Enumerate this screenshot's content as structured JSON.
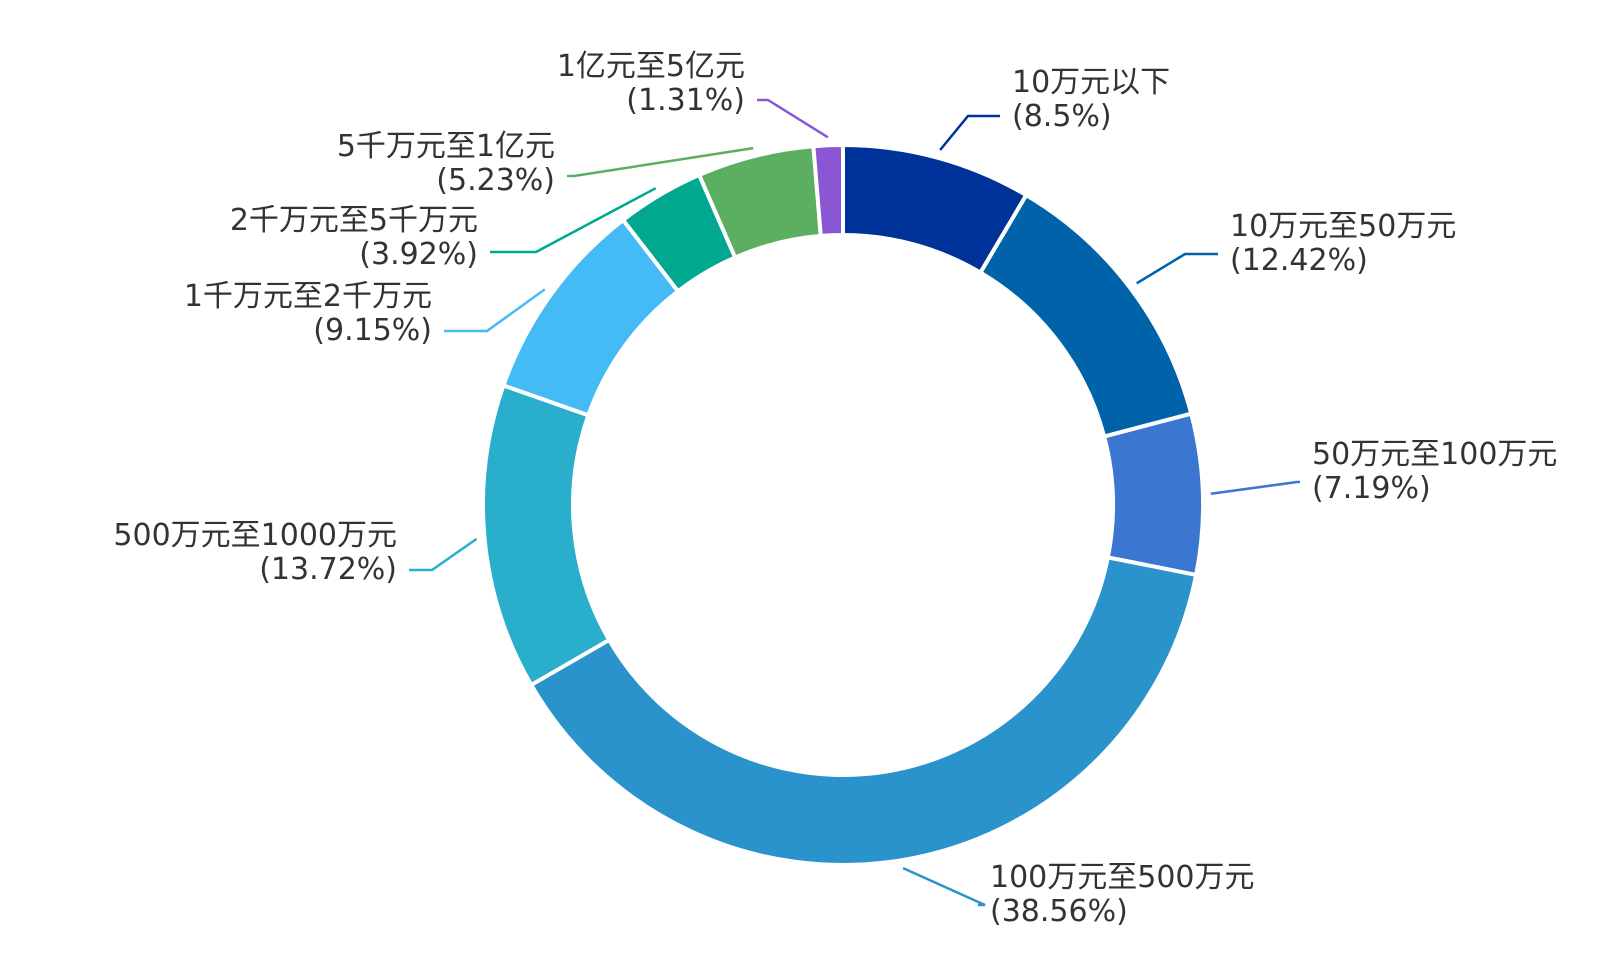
{
  "chart_data": {
    "type": "pie",
    "variant": "donut",
    "title": "",
    "legend": "none",
    "start_angle_deg": 90,
    "direction": "clockwise",
    "slices": [
      {
        "label": "10万元以下",
        "pct_label": "(8.5%)",
        "value": 8.5,
        "color": "#003399"
      },
      {
        "label": "10万元至50万元",
        "pct_label": "(12.42%)",
        "value": 12.42,
        "color": "#0062A8"
      },
      {
        "label": "50万元至100万元",
        "pct_label": "(7.19%)",
        "value": 7.19,
        "color": "#3B77D0"
      },
      {
        "label": "100万元至500万元",
        "pct_label": "(38.56%)",
        "value": 38.56,
        "color": "#2B93CB"
      },
      {
        "label": "500万元至1000万元",
        "pct_label": "(13.72%)",
        "value": 13.72,
        "color": "#29AECC"
      },
      {
        "label": "1千万元至2千万元",
        "pct_label": "(9.15%)",
        "value": 9.15,
        "color": "#45BBF6"
      },
      {
        "label": "2千万元至5千万元",
        "pct_label": "(3.92%)",
        "value": 3.92,
        "color": "#00A890"
      },
      {
        "label": "5千万元至1亿元",
        "pct_label": "(5.23%)",
        "value": 5.23,
        "color": "#5CAE61"
      },
      {
        "label": "1亿元至5亿元",
        "pct_label": "(1.31%)",
        "value": 1.31,
        "color": "#8956D4"
      }
    ]
  }
}
